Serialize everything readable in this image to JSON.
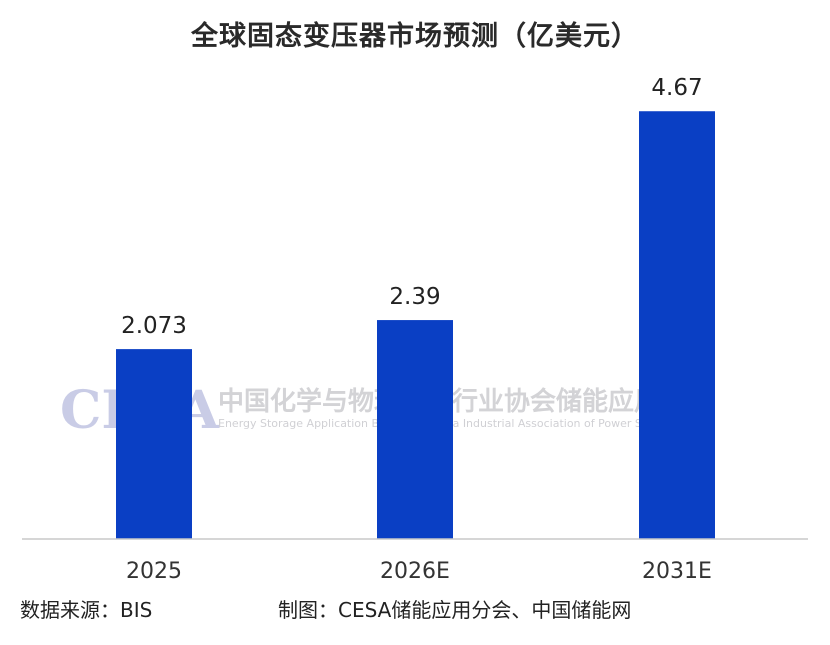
{
  "chart_data": {
    "type": "bar",
    "title": "全球固态变压器市场预测（亿美元）",
    "categories": [
      "2025",
      "2026E",
      "2031E"
    ],
    "values": [
      2.073,
      2.39,
      4.67
    ],
    "value_labels": [
      "2.073",
      "2.39",
      "4.67"
    ],
    "bar_color": "#0a3fc4",
    "ylim": [
      0,
      5.0
    ],
    "grid": false,
    "legend": "none",
    "xlabel": "",
    "ylabel": ""
  },
  "watermark": {
    "logo": "CESA",
    "name_cn": "中国化学与物理电源行业协会储能应用分会",
    "name_en": "Energy Storage Application Branch of China Industrial Association of Power Sources"
  },
  "footer": {
    "source": "数据来源：BIS",
    "credit": "制图：CESA储能应用分会、中国储能网"
  }
}
